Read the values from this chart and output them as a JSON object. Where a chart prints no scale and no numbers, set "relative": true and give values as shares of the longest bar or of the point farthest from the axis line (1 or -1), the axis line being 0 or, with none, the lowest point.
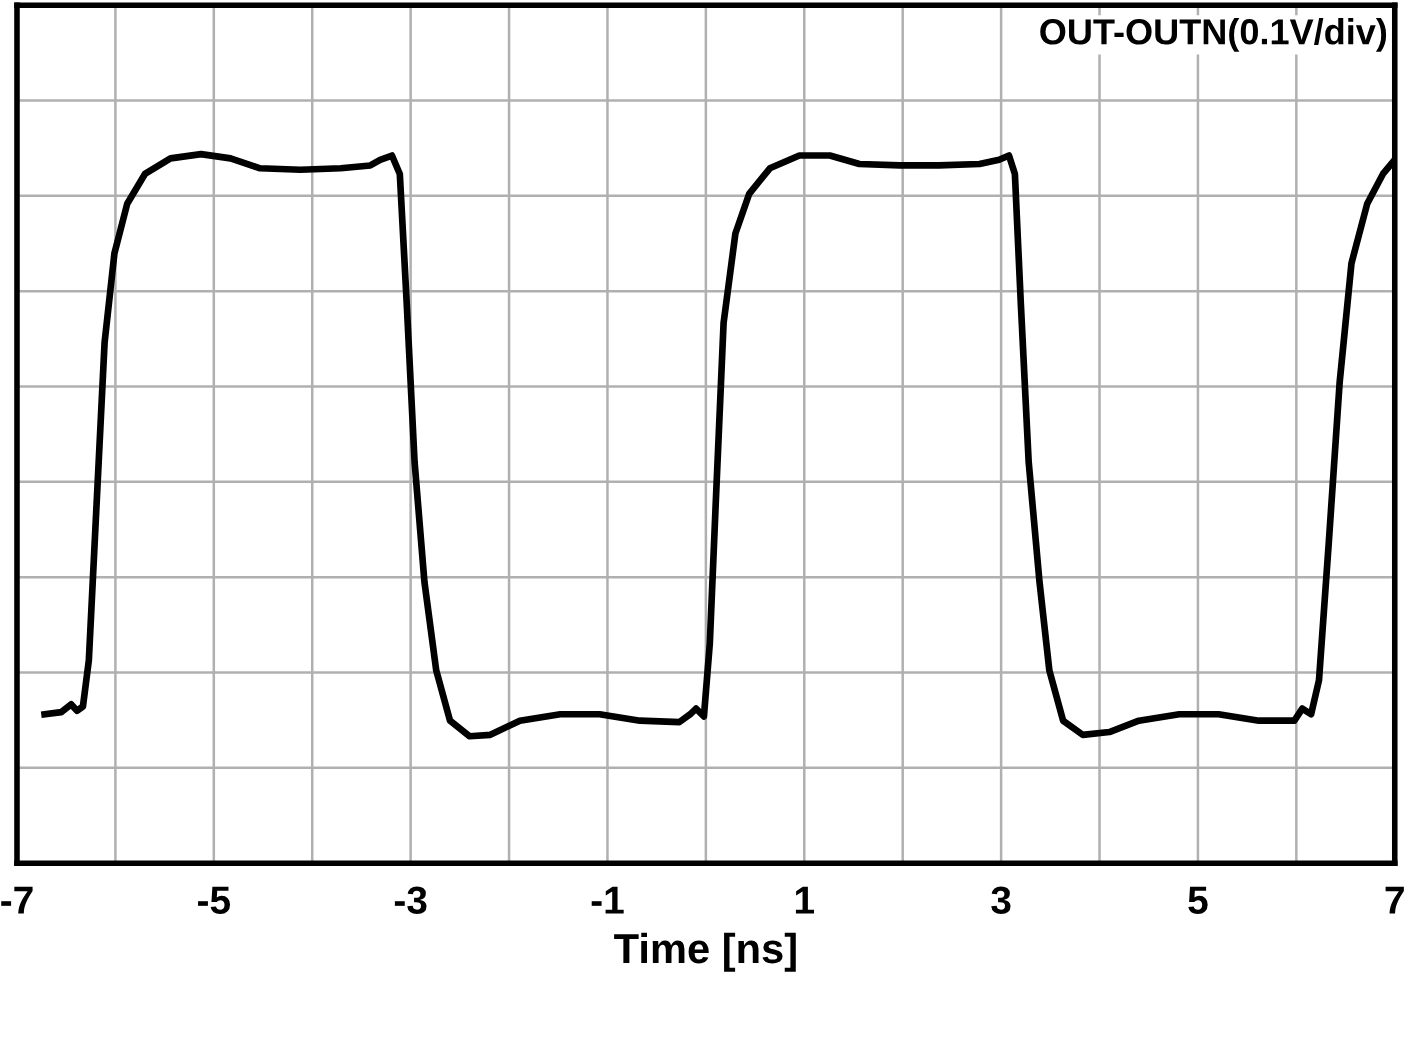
{
  "chart_data": {
    "type": "line",
    "xlabel": "Time [ns]",
    "relative": true,
    "grid": true,
    "legend": false,
    "line_style": "solid",
    "marker": "none",
    "annotations": [
      "OUT-OUTN(0.1V/div)"
    ],
    "xlim": [
      -7,
      7
    ],
    "xticks": [
      -7,
      {
        "value": -6,
        "label": null
      },
      -5,
      {
        "value": -4,
        "label": null
      },
      -3,
      {
        "value": -2,
        "label": null
      },
      -1,
      {
        "value": 0,
        "label": null
      },
      1,
      {
        "value": 2,
        "label": null
      },
      3,
      {
        "value": 4,
        "label": null
      },
      5,
      {
        "value": 6,
        "label": null
      },
      7
    ],
    "tick_labels": "x",
    "series": [
      {
        "color": "#000000",
        "x": [
          -6.72,
          -6.55,
          -6.45,
          -6.39,
          -6.33,
          -6.27,
          -6.19,
          -6.11,
          -6.01,
          -5.88,
          -5.7,
          -5.44,
          -5.13,
          -4.83,
          -4.53,
          -4.12,
          -3.71,
          -3.41,
          -3.31,
          -3.19,
          -3.11,
          -3.04,
          -2.96,
          -2.86,
          -2.74,
          -2.6,
          -2.4,
          -2.19,
          -1.89,
          -1.48,
          -1.08,
          -0.67,
          -0.27,
          -0.16,
          -0.1,
          -0.02,
          0.04,
          0.1,
          0.18,
          0.3,
          0.44,
          0.65,
          0.95,
          1.26,
          1.56,
          1.97,
          2.37,
          2.78,
          2.98,
          3.08,
          3.14,
          3.2,
          3.28,
          3.39,
          3.49,
          3.63,
          3.83,
          4.1,
          4.4,
          4.81,
          5.21,
          5.62,
          5.98,
          6.06,
          6.15,
          6.23,
          6.33,
          6.44,
          6.56,
          6.72,
          6.88,
          7.0
        ],
        "values": [
          0.21,
          0.213,
          0.224,
          0.215,
          0.221,
          0.286,
          0.51,
          0.734,
          0.86,
          0.93,
          0.972,
          0.994,
          1.0,
          0.994,
          0.98,
          0.978,
          0.98,
          0.984,
          0.992,
          0.998,
          0.972,
          0.79,
          0.566,
          0.397,
          0.272,
          0.201,
          0.179,
          0.181,
          0.201,
          0.21,
          0.21,
          0.201,
          0.199,
          0.21,
          0.218,
          0.207,
          0.31,
          0.507,
          0.762,
          0.888,
          0.944,
          0.98,
          0.998,
          0.998,
          0.986,
          0.984,
          0.984,
          0.986,
          0.992,
          0.998,
          0.972,
          0.79,
          0.566,
          0.397,
          0.272,
          0.201,
          0.181,
          0.185,
          0.201,
          0.21,
          0.21,
          0.201,
          0.201,
          0.218,
          0.21,
          0.258,
          0.453,
          0.678,
          0.846,
          0.93,
          0.972,
          0.992
        ]
      }
    ]
  }
}
